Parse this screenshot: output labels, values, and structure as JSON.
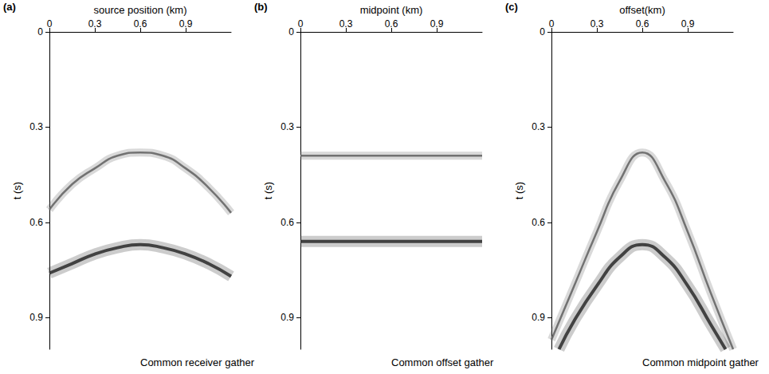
{
  "chart_data": [
    {
      "type": "line",
      "title": "Common receiver gather",
      "annotations": [
        "(a)"
      ],
      "x_label": "source position (km)",
      "y_label": "t (s)",
      "xlim": [
        0,
        1.2
      ],
      "xticks": [
        0,
        0.3,
        0.6,
        0.9
      ],
      "ylim": [
        0,
        1.0
      ],
      "yticks": [
        0,
        0.3,
        0.6,
        0.9
      ],
      "series": [
        {
          "color": "#666666",
          "x": [
            0,
            0.15,
            0.3,
            0.45,
            0.6,
            0.75,
            0.9,
            1.05,
            1.2
          ],
          "values": [
            0.56,
            0.48,
            0.43,
            0.39,
            0.38,
            0.39,
            0.43,
            0.49,
            0.57
          ]
        },
        {
          "color": "#333333",
          "x": [
            0,
            0.15,
            0.3,
            0.45,
            0.6,
            0.75,
            0.9,
            1.05,
            1.2
          ],
          "values": [
            0.76,
            0.73,
            0.7,
            0.68,
            0.67,
            0.68,
            0.7,
            0.73,
            0.77
          ]
        }
      ]
    },
    {
      "type": "line",
      "title": "Common offset gather",
      "annotations": [
        "(b)"
      ],
      "x_label": "midpoint (km)",
      "y_label": "t (s)",
      "xlim": [
        0,
        1.2
      ],
      "xticks": [
        0,
        0.3,
        0.6,
        0.9
      ],
      "ylim": [
        0,
        1.0
      ],
      "yticks": [
        0,
        0.3,
        0.6,
        0.9
      ],
      "series": [
        {
          "color": "#666666",
          "x": [
            0,
            0.3,
            0.6,
            0.9,
            1.2
          ],
          "values": [
            0.39,
            0.39,
            0.39,
            0.39,
            0.39
          ]
        },
        {
          "color": "#333333",
          "x": [
            0,
            0.3,
            0.6,
            0.9,
            1.2
          ],
          "values": [
            0.66,
            0.66,
            0.66,
            0.66,
            0.66
          ]
        }
      ]
    },
    {
      "type": "line",
      "title": "Common midpoint gather",
      "annotations": [
        "(c)"
      ],
      "x_label": "offset(km)",
      "y_label": "t (s)",
      "xlim": [
        0,
        1.2
      ],
      "xticks": [
        0,
        0.3,
        0.6,
        0.9
      ],
      "ylim": [
        0,
        1.0
      ],
      "yticks": [
        0,
        0.3,
        0.6,
        0.9
      ],
      "series": [
        {
          "color": "#666666",
          "x": [
            0,
            0.15,
            0.3,
            0.45,
            0.6,
            0.75,
            0.9,
            1.05,
            1.2
          ],
          "values": [
            0.97,
            0.8,
            0.63,
            0.47,
            0.38,
            0.47,
            0.63,
            0.82,
            1.0
          ]
        },
        {
          "color": "#333333",
          "x": [
            0.05,
            0.15,
            0.3,
            0.45,
            0.6,
            0.75,
            0.9,
            1.05,
            1.15
          ],
          "values": [
            1.0,
            0.91,
            0.8,
            0.71,
            0.67,
            0.71,
            0.8,
            0.92,
            1.0
          ]
        }
      ]
    }
  ]
}
